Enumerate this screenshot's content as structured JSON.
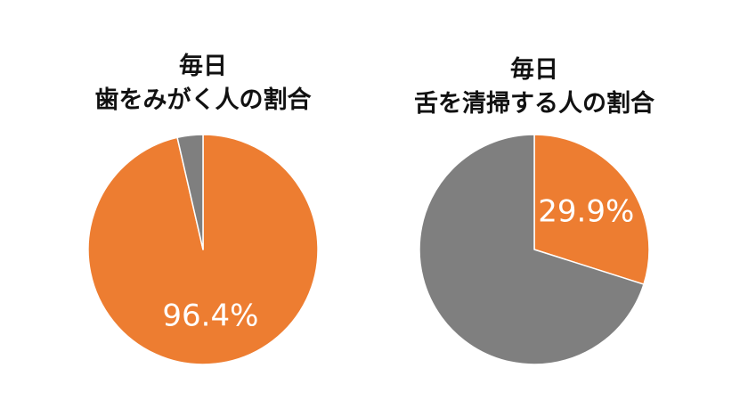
{
  "colors": {
    "highlight": "#ED7D31",
    "rest": "#7F7F7F",
    "slice_border": "#FFFFFF",
    "label": "#FFFFFF"
  },
  "chart_data": [
    {
      "type": "pie",
      "title_lines": [
        "毎日",
        "歯をみがく人の割合"
      ],
      "slices": [
        {
          "value": 96.4,
          "label": "96.4%",
          "color": "#ED7D31"
        },
        {
          "value": 3.6,
          "label": "",
          "color": "#7F7F7F"
        }
      ]
    },
    {
      "type": "pie",
      "title_lines": [
        "毎日",
        "舌を清掃する人の割合"
      ],
      "slices": [
        {
          "value": 29.9,
          "label": "29.9%",
          "color": "#ED7D31"
        },
        {
          "value": 70.1,
          "label": "",
          "color": "#7F7F7F"
        }
      ]
    }
  ]
}
